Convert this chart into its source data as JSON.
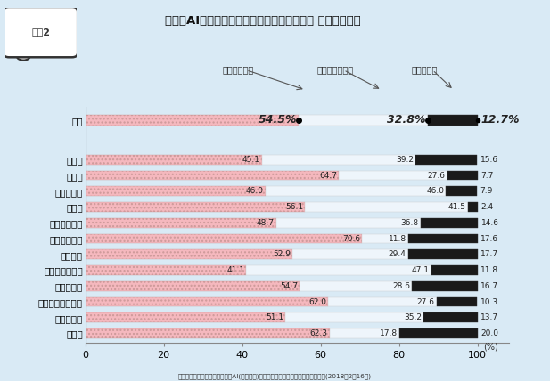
{
  "title": "今後、AIが普及することに対してどう思うか （単一回答）",
  "figure_label": "図表2",
  "categories": [
    "全体",
    "建設業",
    "製造業",
    "情報通信業",
    "運輸業",
    "卸売・小売業",
    "金融・保険業",
    "不動産業",
    "飲食店・宿泊業",
    "医療・福祉",
    "教育・学習支援業",
    "サービス業",
    "公務等"
  ],
  "expecting": [
    54.5,
    45.1,
    64.7,
    46.0,
    56.1,
    48.7,
    70.6,
    52.9,
    41.1,
    54.7,
    62.0,
    51.1,
    62.3
  ],
  "neutral": [
    32.8,
    39.2,
    27.6,
    46.0,
    41.5,
    36.8,
    11.8,
    29.4,
    47.1,
    28.6,
    27.6,
    35.2,
    17.8
  ],
  "anxious": [
    12.7,
    15.6,
    7.7,
    7.9,
    2.4,
    14.6,
    17.6,
    17.7,
    11.8,
    16.7,
    10.3,
    13.7,
    20.0
  ],
  "legend_labels": [
    "期待している",
    "どちらでもない",
    "不安である"
  ],
  "color_expecting": "#f5b8be",
  "color_neutral": "#f0f0f0",
  "color_anxious": "#1a1a1a",
  "background_color": "#d9eaf5",
  "source_text": "出典：日本労働組合総連合会「AI(人工知能)が職場にもたらす影響に関する調査」(2018年2月16日)",
  "xlim": [
    0,
    100
  ]
}
